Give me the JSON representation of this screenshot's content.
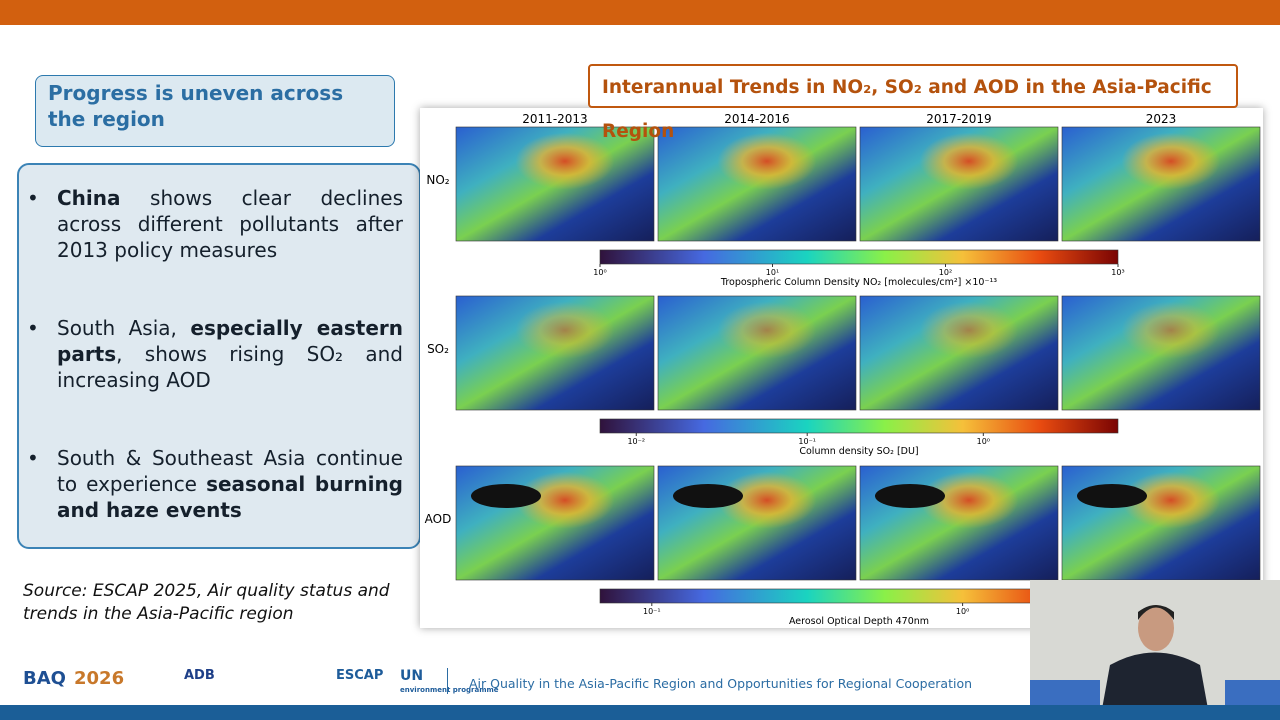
{
  "header": {
    "title": "Progress is uneven across the region"
  },
  "bullets": [
    {
      "parts": [
        {
          "text": "China",
          "bold": true
        },
        {
          "text": " shows clear declines across different pollutants after 2013 policy measures"
        }
      ]
    },
    {
      "parts": [
        {
          "text": "South Asia, "
        },
        {
          "text": "especially eastern parts",
          "bold": true
        },
        {
          "text": ", shows rising SO₂ and increasing AOD"
        }
      ]
    },
    {
      "parts": [
        {
          "text": "South & Southeast Asia continue to experience "
        },
        {
          "text": "seasonal burning and haze events",
          "bold": true
        }
      ]
    }
  ],
  "source": "Source: ESCAP 2025, Air quality status and trends in the Asia-Pacific region",
  "figure": {
    "title": "Interannual Trends in NO₂, SO₂ and AOD in the Asia-Pacific Region",
    "columns": [
      "2011-2013",
      "2014-2016",
      "2017-2019",
      "2023"
    ],
    "rows": [
      {
        "label": "NO₂",
        "colorbar_label": "Tropospheric Column Density NO₂ [molecules/cm²] ×10⁻¹³",
        "ticks": [
          "10⁰",
          "10¹",
          "10²",
          "10³"
        ]
      },
      {
        "label": "SO₂",
        "colorbar_label": "Column density SO₂ [DU]",
        "ticks": [
          "10⁻²",
          "10⁻¹",
          "10⁰"
        ]
      },
      {
        "label": "AOD",
        "colorbar_label": "Aerosol Optical Depth 470nm",
        "ticks": [
          "10⁻¹",
          "10⁰"
        ]
      }
    ]
  },
  "footer": {
    "logos": [
      "BAQ",
      "2026",
      "ADB",
      "ESCAP",
      "UN",
      "environment programme"
    ],
    "caption": "Air Quality in the Asia-Pacific Region and Opportunities for Regional Cooperation"
  }
}
